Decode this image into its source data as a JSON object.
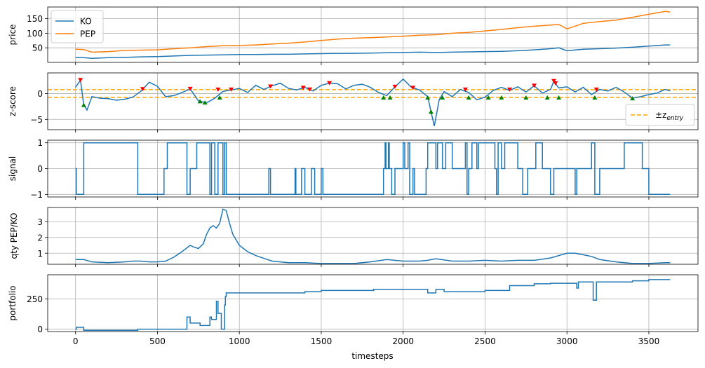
{
  "colors": {
    "ko": "#1f77b4",
    "pep": "#ff7f0e",
    "zentry": "#ffa500",
    "entry_down_marker": "#ff0000",
    "exit_up_marker": "#008000",
    "grid": "#b0b0b0"
  },
  "shared_xaxis": {
    "label": "timesteps",
    "range": [
      -170,
      3800
    ],
    "ticks": [
      0,
      500,
      1000,
      1500,
      2000,
      2500,
      3000,
      3500
    ],
    "tick_labels": [
      "0",
      "500",
      "1000",
      "1500",
      "2000",
      "2500",
      "3000",
      "3500"
    ]
  },
  "chart_data": [
    {
      "type": "line",
      "ylabel": "price",
      "ylim": [
        0,
        190
      ],
      "yticks": [
        50,
        100,
        150
      ],
      "ytick_labels": [
        "50",
        "100",
        "150"
      ],
      "grid": true,
      "legend": "top-left",
      "x": [
        0,
        50,
        100,
        200,
        300,
        400,
        500,
        600,
        700,
        800,
        900,
        1000,
        1100,
        1200,
        1300,
        1400,
        1500,
        1600,
        1700,
        1800,
        1900,
        2000,
        2100,
        2200,
        2300,
        2400,
        2500,
        2600,
        2700,
        2800,
        2900,
        2950,
        3000,
        3100,
        3200,
        3300,
        3400,
        3500,
        3600,
        3630
      ],
      "series": [
        {
          "name": "KO",
          "values": [
            17,
            16,
            14,
            16,
            17,
            19,
            20,
            22,
            24,
            25,
            26,
            27,
            27,
            28,
            28,
            29,
            30,
            31,
            31,
            32,
            33,
            34,
            35,
            34,
            35,
            36,
            37,
            38,
            40,
            43,
            47,
            50,
            40,
            45,
            47,
            49,
            52,
            56,
            60,
            60
          ]
        },
        {
          "name": "PEP",
          "values": [
            45,
            44,
            35,
            37,
            41,
            42,
            43,
            47,
            50,
            54,
            57,
            58,
            60,
            63,
            66,
            70,
            75,
            80,
            83,
            85,
            87,
            90,
            93,
            95,
            100,
            103,
            108,
            113,
            119,
            124,
            128,
            130,
            115,
            134,
            140,
            145,
            155,
            165,
            175,
            173
          ]
        }
      ]
    },
    {
      "type": "line",
      "ylabel": "z-score",
      "ylim": [
        -7,
        4
      ],
      "yticks": [
        0,
        -5
      ],
      "ytick_labels": [
        "0",
        "−5"
      ],
      "grid": true,
      "legend": "lower-right",
      "legend_label": "±z",
      "legend_subscript": "entry",
      "z_entry": 0.75,
      "x": [
        0,
        30,
        50,
        70,
        100,
        150,
        200,
        250,
        300,
        350,
        400,
        450,
        500,
        550,
        600,
        650,
        700,
        750,
        800,
        850,
        900,
        950,
        1000,
        1050,
        1100,
        1150,
        1200,
        1250,
        1300,
        1350,
        1400,
        1450,
        1500,
        1550,
        1600,
        1650,
        1700,
        1750,
        1800,
        1850,
        1900,
        1950,
        2000,
        2050,
        2100,
        2150,
        2170,
        2190,
        2220,
        2250,
        2300,
        2350,
        2400,
        2450,
        2500,
        2550,
        2600,
        2650,
        2700,
        2750,
        2800,
        2850,
        2900,
        2920,
        2950,
        3000,
        3050,
        3100,
        3150,
        3200,
        3250,
        3300,
        3350,
        3400,
        3450,
        3500,
        3550,
        3600,
        3630
      ],
      "series": [
        {
          "name": "z-score",
          "values": [
            1.2,
            2.6,
            -2.2,
            -3.2,
            -0.6,
            -0.9,
            -1.0,
            -1.3,
            -1.1,
            -0.7,
            0.5,
            2.2,
            1.4,
            -0.6,
            -0.4,
            0.2,
            0.9,
            -1.4,
            -1.8,
            -0.9,
            0.4,
            0.7,
            1.0,
            0.2,
            1.6,
            0.8,
            1.5,
            2.0,
            1.0,
            0.7,
            1.2,
            0.5,
            1.6,
            2.0,
            1.9,
            0.9,
            1.6,
            1.8,
            1.2,
            0.2,
            -0.4,
            1.3,
            2.8,
            1.2,
            0.7,
            -0.6,
            -3.5,
            -6.3,
            -1.2,
            0.4,
            -0.6,
            0.8,
            0.2,
            -1.2,
            -0.7,
            0.6,
            1.2,
            0.6,
            1.3,
            0.3,
            1.5,
            0.1,
            0.8,
            2.4,
            1.1,
            1.3,
            0.3,
            1.2,
            -0.2,
            0.8,
            0.5,
            1.2,
            0.3,
            -0.9,
            -0.6,
            -0.2,
            0.1,
            0.8,
            0.5
          ]
        }
      ],
      "markers_down_x": [
        30,
        410,
        700,
        870,
        950,
        1190,
        1390,
        1430,
        1550,
        1950,
        2060,
        2380,
        2650,
        2800,
        2920,
        2930,
        3180
      ],
      "markers_up_x": [
        50,
        760,
        790,
        880,
        1880,
        1920,
        2150,
        2170,
        2240,
        2400,
        2520,
        2600,
        2750,
        2880,
        2950,
        3170,
        3400
      ]
    },
    {
      "type": "line",
      "ylabel": "signal",
      "ylim": [
        -1.1,
        1.1
      ],
      "yticks": [
        1,
        0,
        -1
      ],
      "ytick_labels": [
        "1",
        "0",
        "−1"
      ],
      "grid": true,
      "steps": [
        [
          0,
          0
        ],
        [
          5,
          -1
        ],
        [
          50,
          1
        ],
        [
          380,
          -1
        ],
        [
          540,
          0
        ],
        [
          560,
          1
        ],
        [
          680,
          -1
        ],
        [
          700,
          0
        ],
        [
          740,
          1
        ],
        [
          820,
          -1
        ],
        [
          830,
          1
        ],
        [
          850,
          -1
        ],
        [
          870,
          1
        ],
        [
          900,
          -1
        ],
        [
          910,
          1
        ],
        [
          920,
          -1
        ],
        [
          1180,
          0
        ],
        [
          1190,
          -1
        ],
        [
          1340,
          0
        ],
        [
          1345,
          -1
        ],
        [
          1380,
          0
        ],
        [
          1400,
          -1
        ],
        [
          1440,
          0
        ],
        [
          1460,
          -1
        ],
        [
          1500,
          0
        ],
        [
          1510,
          -1
        ],
        [
          1880,
          0
        ],
        [
          1890,
          1
        ],
        [
          1895,
          0
        ],
        [
          1910,
          1
        ],
        [
          1915,
          0
        ],
        [
          1930,
          -1
        ],
        [
          1950,
          0
        ],
        [
          2000,
          1
        ],
        [
          2010,
          0
        ],
        [
          2030,
          1
        ],
        [
          2040,
          -1
        ],
        [
          2060,
          0
        ],
        [
          2070,
          -1
        ],
        [
          2140,
          0
        ],
        [
          2150,
          1
        ],
        [
          2200,
          0
        ],
        [
          2210,
          1
        ],
        [
          2240,
          0
        ],
        [
          2260,
          1
        ],
        [
          2300,
          0
        ],
        [
          2380,
          1
        ],
        [
          2390,
          -1
        ],
        [
          2400,
          0
        ],
        [
          2420,
          1
        ],
        [
          2450,
          0
        ],
        [
          2460,
          1
        ],
        [
          2560,
          0
        ],
        [
          2570,
          -1
        ],
        [
          2580,
          1
        ],
        [
          2600,
          0
        ],
        [
          2620,
          1
        ],
        [
          2700,
          0
        ],
        [
          2730,
          -1
        ],
        [
          2760,
          0
        ],
        [
          2810,
          1
        ],
        [
          2850,
          0
        ],
        [
          2900,
          -1
        ],
        [
          2920,
          0
        ],
        [
          3050,
          -1
        ],
        [
          3060,
          0
        ],
        [
          3150,
          1
        ],
        [
          3170,
          -1
        ],
        [
          3200,
          0
        ],
        [
          3350,
          1
        ],
        [
          3460,
          0
        ],
        [
          3500,
          -1
        ],
        [
          3630,
          -1
        ]
      ]
    },
    {
      "type": "line",
      "ylabel": "qty PEP/KO",
      "ylim": [
        0.3,
        3.9
      ],
      "yticks": [
        1,
        2,
        3
      ],
      "ytick_labels": [
        "1",
        "2",
        "3"
      ],
      "grid": true,
      "x": [
        0,
        50,
        100,
        200,
        300,
        350,
        400,
        450,
        500,
        550,
        600,
        650,
        700,
        720,
        750,
        780,
        800,
        820,
        840,
        860,
        880,
        900,
        920,
        940,
        960,
        1000,
        1050,
        1100,
        1200,
        1300,
        1400,
        1500,
        1600,
        1700,
        1800,
        1900,
        1950,
        2000,
        2100,
        2150,
        2200,
        2300,
        2400,
        2500,
        2600,
        2700,
        2800,
        2900,
        3000,
        3050,
        3100,
        3150,
        3200,
        3300,
        3400,
        3500,
        3600,
        3630
      ],
      "values": [
        0.6,
        0.6,
        0.45,
        0.4,
        0.45,
        0.5,
        0.5,
        0.45,
        0.45,
        0.5,
        0.75,
        1.1,
        1.5,
        1.4,
        1.3,
        1.6,
        2.2,
        2.6,
        2.75,
        2.6,
        2.9,
        3.8,
        3.7,
        2.9,
        2.2,
        1.5,
        1.1,
        0.85,
        0.5,
        0.4,
        0.4,
        0.35,
        0.35,
        0.35,
        0.45,
        0.6,
        0.55,
        0.5,
        0.5,
        0.55,
        0.65,
        0.5,
        0.5,
        0.55,
        0.5,
        0.55,
        0.55,
        0.7,
        1.0,
        1.0,
        0.9,
        0.8,
        0.6,
        0.45,
        0.35,
        0.35,
        0.4,
        0.4
      ]
    },
    {
      "type": "line",
      "ylabel": "portfolio",
      "ylim": [
        -20,
        450
      ],
      "yticks": [
        250,
        0
      ],
      "ytick_labels": [
        "250",
        "0"
      ],
      "grid": true,
      "steps": [
        [
          0,
          0
        ],
        [
          5,
          15
        ],
        [
          50,
          -10
        ],
        [
          380,
          0
        ],
        [
          680,
          100
        ],
        [
          700,
          50
        ],
        [
          760,
          30
        ],
        [
          820,
          100
        ],
        [
          830,
          80
        ],
        [
          860,
          230
        ],
        [
          870,
          130
        ],
        [
          890,
          0
        ],
        [
          910,
          200
        ],
        [
          915,
          270
        ],
        [
          920,
          300
        ],
        [
          1100,
          300
        ],
        [
          1400,
          310
        ],
        [
          1500,
          320
        ],
        [
          1750,
          320
        ],
        [
          1820,
          330
        ],
        [
          2150,
          300
        ],
        [
          2200,
          330
        ],
        [
          2250,
          310
        ],
        [
          2300,
          310
        ],
        [
          2500,
          320
        ],
        [
          2600,
          320
        ],
        [
          2650,
          360
        ],
        [
          2800,
          375
        ],
        [
          2900,
          380
        ],
        [
          3050,
          380
        ],
        [
          3060,
          340
        ],
        [
          3070,
          390
        ],
        [
          3150,
          390
        ],
        [
          3160,
          240
        ],
        [
          3180,
          390
        ],
        [
          3400,
          400
        ],
        [
          3500,
          410
        ],
        [
          3630,
          410
        ]
      ]
    }
  ]
}
